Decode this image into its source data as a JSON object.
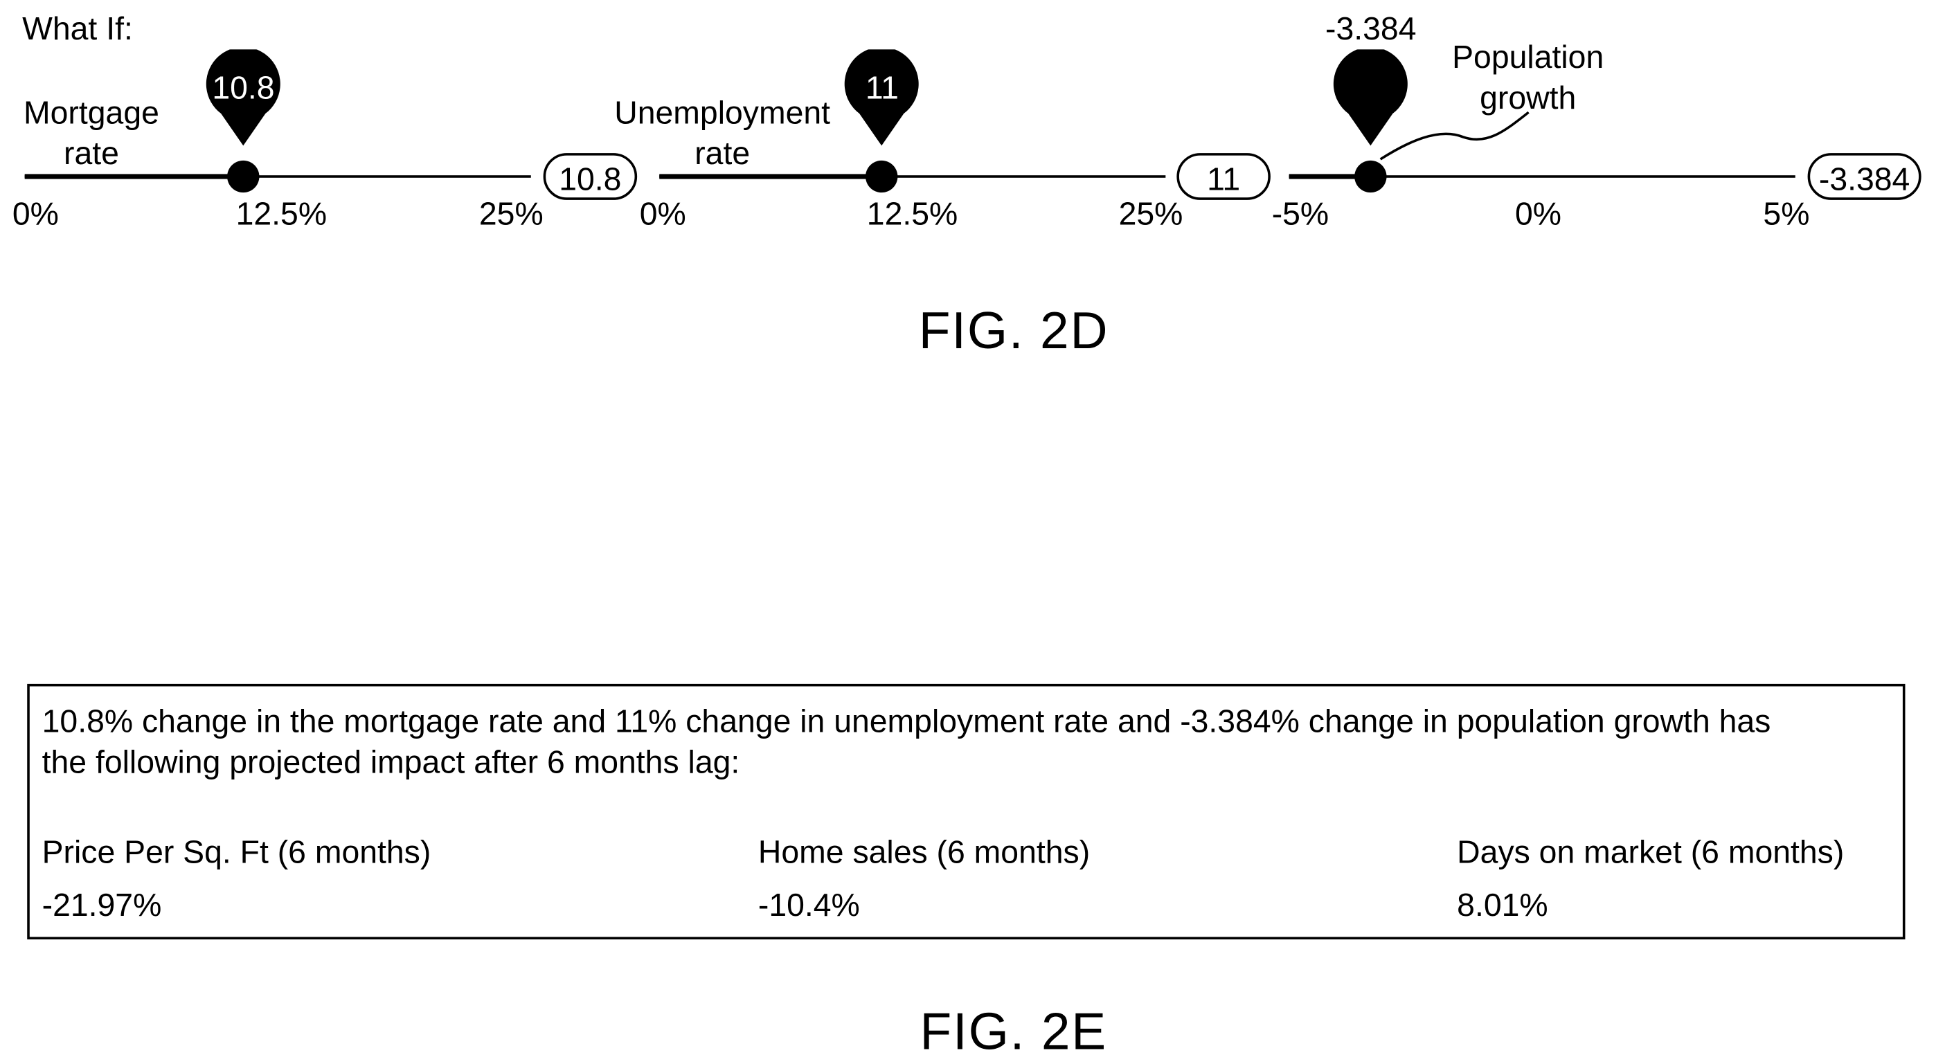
{
  "fig2d": {
    "heading": "What If:",
    "caption": "FIG. 2D",
    "sliders": [
      {
        "label_line1": "Mortgage",
        "label_line2": "rate",
        "pin_value": "10.8",
        "box_value": "10.8",
        "value": 10.8,
        "min": 0,
        "max": 25,
        "ticks": [
          "0%",
          "12.5%",
          "25%"
        ]
      },
      {
        "label_line1": "Unemployment",
        "label_line2": "rate",
        "pin_value": "11",
        "box_value": "11",
        "value": 11,
        "min": 0,
        "max": 25,
        "ticks": [
          "0%",
          "12.5%",
          "25%"
        ]
      },
      {
        "label_line1": "Population",
        "label_line2": "growth",
        "pin_value": "-3.384",
        "box_value": "-3.384",
        "value": -3.384,
        "min": -5,
        "max": 5,
        "ticks": [
          "-5%",
          "0%",
          "5%"
        ]
      }
    ]
  },
  "fig2e": {
    "caption": "FIG. 2E",
    "summary_line1": "10.8% change in the mortgage rate and 11% change in unemployment rate and -3.384% change in population growth has",
    "summary_line2": "the following projected impact after 6 months lag:",
    "metrics": [
      {
        "label": "Price Per Sq. Ft (6 months)",
        "value": "-21.97%"
      },
      {
        "label": "Home sales (6 months)",
        "value": "-10.4%"
      },
      {
        "label": "Days on market (6 months)",
        "value": "8.01%"
      }
    ]
  }
}
